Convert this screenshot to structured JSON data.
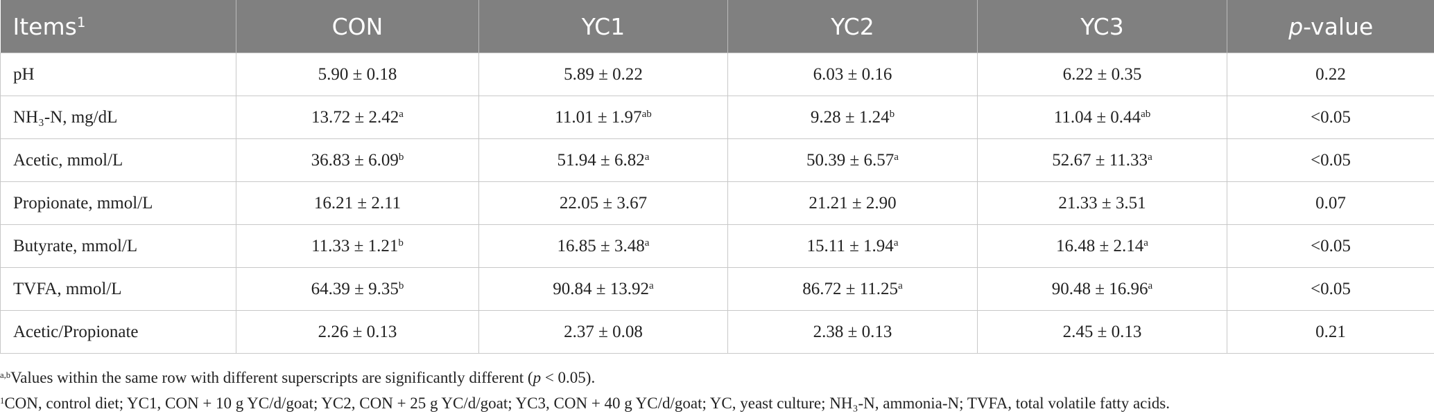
{
  "header": {
    "items": {
      "text": "Items",
      "sup": "1"
    },
    "groups": [
      "CON",
      "YC1",
      "YC2",
      "YC3"
    ],
    "pvalue": {
      "italic": "p",
      "text": "-value"
    }
  },
  "rows": [
    {
      "item": "pH",
      "cells": [
        {
          "value": "5.90 ± 0.18"
        },
        {
          "value": "5.89 ± 0.22"
        },
        {
          "value": "6.03 ± 0.16"
        },
        {
          "value": "6.22 ± 0.35"
        }
      ],
      "p": "0.22"
    },
    {
      "item": "NH₃-N, mg/dL",
      "cells": [
        {
          "value": "13.72 ± 2.42",
          "sup": "a"
        },
        {
          "value": "11.01 ± 1.97",
          "sup": "ab"
        },
        {
          "value": "9.28 ± 1.24",
          "sup": "b"
        },
        {
          "value": "11.04 ± 0.44",
          "sup": "ab"
        }
      ],
      "p": "<0.05"
    },
    {
      "item": "Acetic, mmol/L",
      "cells": [
        {
          "value": "36.83 ± 6.09",
          "sup": "b"
        },
        {
          "value": "51.94 ± 6.82",
          "sup": "a"
        },
        {
          "value": "50.39 ± 6.57",
          "sup": "a"
        },
        {
          "value": "52.67 ± 11.33",
          "sup": "a"
        }
      ],
      "p": "<0.05"
    },
    {
      "item": "Propionate, mmol/L",
      "cells": [
        {
          "value": "16.21 ± 2.11"
        },
        {
          "value": "22.05 ± 3.67"
        },
        {
          "value": "21.21 ± 2.90"
        },
        {
          "value": "21.33 ± 3.51"
        }
      ],
      "p": "0.07"
    },
    {
      "item": "Butyrate, mmol/L",
      "cells": [
        {
          "value": "11.33 ± 1.21",
          "sup": "b"
        },
        {
          "value": "16.85 ± 3.48",
          "sup": "a"
        },
        {
          "value": "15.11 ± 1.94",
          "sup": "a"
        },
        {
          "value": "16.48 ± 2.14",
          "sup": "a"
        }
      ],
      "p": "<0.05"
    },
    {
      "item": "TVFA, mmol/L",
      "cells": [
        {
          "value": "64.39 ± 9.35",
          "sup": "b"
        },
        {
          "value": "90.84 ± 13.92",
          "sup": "a"
        },
        {
          "value": "86.72 ± 11.25",
          "sup": "a"
        },
        {
          "value": "90.48 ± 16.96",
          "sup": "a"
        }
      ],
      "p": "<0.05"
    },
    {
      "item": "Acetic/Propionate",
      "cells": [
        {
          "value": "2.26 ± 0.13"
        },
        {
          "value": "2.37 ± 0.08"
        },
        {
          "value": "2.38 ± 0.13"
        },
        {
          "value": "2.45 ± 0.13"
        }
      ],
      "p": "0.21"
    }
  ],
  "footnotes": [
    {
      "mark": "a,b",
      "parts": [
        "Values within the same row with different superscripts are significantly different (",
        "p",
        " < 0.05)."
      ]
    },
    {
      "mark": "1",
      "text": "CON, control diet; YC1, CON + 10 g YC/d/goat; YC2, CON + 25 g YC/d/goat; YC3, CON + 40 g YC/d/goat; YC, yeast culture; NH₃-N, ammonia-N; TVFA, total volatile fatty acids."
    }
  ]
}
